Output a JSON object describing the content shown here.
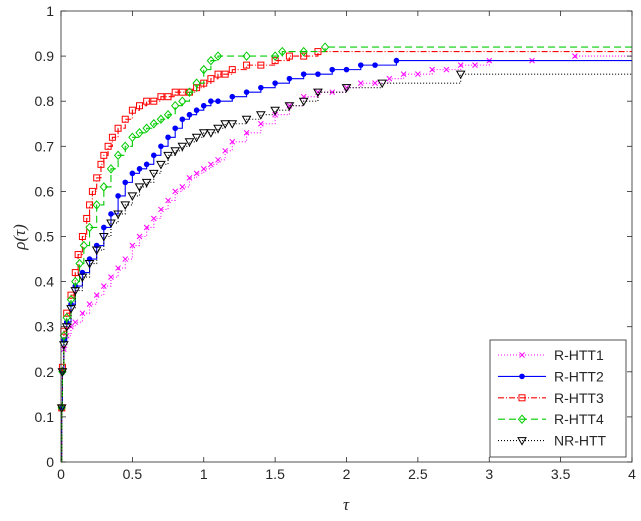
{
  "chart_data": {
    "type": "line",
    "title": "",
    "xlabel": "τ",
    "ylabel": "ρ(τ)",
    "xlim": [
      0,
      4
    ],
    "ylim": [
      0,
      1
    ],
    "x_ticks": [
      "0",
      "0.5",
      "1",
      "1.5",
      "2",
      "2.5",
      "3",
      "3.5",
      "4"
    ],
    "y_ticks": [
      "0",
      "0.1",
      "0.2",
      "0.3",
      "0.4",
      "0.5",
      "0.6",
      "0.7",
      "0.8",
      "0.9",
      "1"
    ],
    "grid": false,
    "legend_position": "bottom-right",
    "series": [
      {
        "name": "R-HTT1",
        "color": "#ff00ff",
        "dash": "1,2",
        "marker": "x",
        "x": [
          0,
          0.005,
          0.01,
          0.02,
          0.04,
          0.07,
          0.1,
          0.15,
          0.2,
          0.25,
          0.3,
          0.35,
          0.4,
          0.45,
          0.5,
          0.55,
          0.6,
          0.65,
          0.7,
          0.75,
          0.8,
          0.85,
          0.9,
          0.95,
          1.0,
          1.05,
          1.1,
          1.15,
          1.2,
          1.3,
          1.4,
          1.5,
          1.6,
          1.7,
          1.8,
          1.9,
          2.0,
          2.1,
          2.2,
          2.3,
          2.4,
          2.5,
          2.6,
          2.7,
          2.8,
          2.9,
          3.0,
          3.3,
          3.6,
          4.0
        ],
        "y": [
          0,
          0.12,
          0.2,
          0.25,
          0.28,
          0.3,
          0.31,
          0.33,
          0.35,
          0.37,
          0.39,
          0.41,
          0.43,
          0.45,
          0.48,
          0.5,
          0.52,
          0.54,
          0.56,
          0.58,
          0.6,
          0.61,
          0.63,
          0.64,
          0.65,
          0.66,
          0.67,
          0.69,
          0.71,
          0.73,
          0.75,
          0.77,
          0.79,
          0.81,
          0.82,
          0.82,
          0.83,
          0.84,
          0.84,
          0.85,
          0.86,
          0.86,
          0.87,
          0.87,
          0.88,
          0.88,
          0.89,
          0.89,
          0.9,
          0.9
        ]
      },
      {
        "name": "R-HTT2",
        "color": "#0000ff",
        "dash": "",
        "marker": "dot",
        "x": [
          0,
          0.005,
          0.01,
          0.02,
          0.04,
          0.07,
          0.1,
          0.15,
          0.2,
          0.25,
          0.3,
          0.35,
          0.4,
          0.45,
          0.5,
          0.55,
          0.6,
          0.65,
          0.7,
          0.75,
          0.8,
          0.85,
          0.9,
          0.95,
          1.0,
          1.05,
          1.1,
          1.2,
          1.3,
          1.4,
          1.5,
          1.6,
          1.7,
          1.8,
          1.9,
          2.0,
          2.1,
          2.2,
          2.35,
          4.0
        ],
        "y": [
          0,
          0.12,
          0.2,
          0.27,
          0.31,
          0.35,
          0.39,
          0.42,
          0.45,
          0.48,
          0.52,
          0.55,
          0.59,
          0.62,
          0.64,
          0.65,
          0.66,
          0.68,
          0.7,
          0.72,
          0.74,
          0.76,
          0.77,
          0.78,
          0.79,
          0.8,
          0.8,
          0.81,
          0.82,
          0.83,
          0.84,
          0.85,
          0.86,
          0.86,
          0.87,
          0.87,
          0.88,
          0.88,
          0.89,
          0.89
        ]
      },
      {
        "name": "R-HTT3",
        "color": "#ff0000",
        "dash": "6,2,1,2",
        "marker": "square",
        "x": [
          0,
          0.005,
          0.01,
          0.02,
          0.04,
          0.07,
          0.1,
          0.12,
          0.15,
          0.18,
          0.2,
          0.22,
          0.25,
          0.28,
          0.3,
          0.33,
          0.36,
          0.4,
          0.45,
          0.5,
          0.55,
          0.6,
          0.65,
          0.7,
          0.75,
          0.8,
          0.85,
          0.9,
          0.95,
          1.0,
          1.05,
          1.1,
          1.15,
          1.2,
          1.3,
          1.4,
          1.5,
          1.6,
          1.7,
          1.8,
          4.0
        ],
        "y": [
          0,
          0.12,
          0.21,
          0.29,
          0.33,
          0.37,
          0.42,
          0.46,
          0.5,
          0.54,
          0.57,
          0.6,
          0.63,
          0.66,
          0.68,
          0.7,
          0.72,
          0.74,
          0.76,
          0.78,
          0.79,
          0.8,
          0.8,
          0.81,
          0.81,
          0.82,
          0.82,
          0.82,
          0.83,
          0.84,
          0.85,
          0.86,
          0.86,
          0.87,
          0.88,
          0.88,
          0.89,
          0.9,
          0.9,
          0.91,
          0.91
        ]
      },
      {
        "name": "R-HTT4",
        "color": "#00cc00",
        "dash": "7,4",
        "marker": "diamond",
        "x": [
          0,
          0.005,
          0.01,
          0.02,
          0.04,
          0.07,
          0.1,
          0.13,
          0.16,
          0.2,
          0.25,
          0.3,
          0.35,
          0.4,
          0.45,
          0.5,
          0.55,
          0.6,
          0.65,
          0.7,
          0.75,
          0.8,
          0.85,
          0.9,
          0.95,
          1.0,
          1.05,
          1.1,
          1.3,
          1.5,
          1.55,
          1.7,
          1.85,
          4.0
        ],
        "y": [
          0,
          0.12,
          0.2,
          0.28,
          0.32,
          0.36,
          0.4,
          0.44,
          0.48,
          0.52,
          0.57,
          0.61,
          0.65,
          0.68,
          0.7,
          0.72,
          0.73,
          0.74,
          0.75,
          0.76,
          0.77,
          0.79,
          0.8,
          0.82,
          0.84,
          0.87,
          0.89,
          0.9,
          0.9,
          0.9,
          0.91,
          0.91,
          0.92,
          0.92
        ]
      },
      {
        "name": "NR-HTT",
        "color": "#000000",
        "dash": "1,2",
        "marker": "triangle-down",
        "x": [
          0,
          0.005,
          0.01,
          0.02,
          0.04,
          0.07,
          0.1,
          0.15,
          0.2,
          0.25,
          0.3,
          0.35,
          0.4,
          0.45,
          0.5,
          0.55,
          0.6,
          0.65,
          0.7,
          0.75,
          0.8,
          0.85,
          0.9,
          0.95,
          1.0,
          1.05,
          1.1,
          1.15,
          1.2,
          1.3,
          1.4,
          1.5,
          1.6,
          1.7,
          1.8,
          2.0,
          2.25,
          2.8,
          4.0
        ],
        "y": [
          0,
          0.12,
          0.2,
          0.26,
          0.3,
          0.34,
          0.38,
          0.41,
          0.44,
          0.47,
          0.5,
          0.53,
          0.55,
          0.57,
          0.59,
          0.61,
          0.62,
          0.64,
          0.66,
          0.68,
          0.69,
          0.7,
          0.71,
          0.72,
          0.73,
          0.73,
          0.74,
          0.75,
          0.75,
          0.76,
          0.77,
          0.78,
          0.79,
          0.8,
          0.82,
          0.83,
          0.84,
          0.86,
          0.86
        ]
      }
    ]
  }
}
